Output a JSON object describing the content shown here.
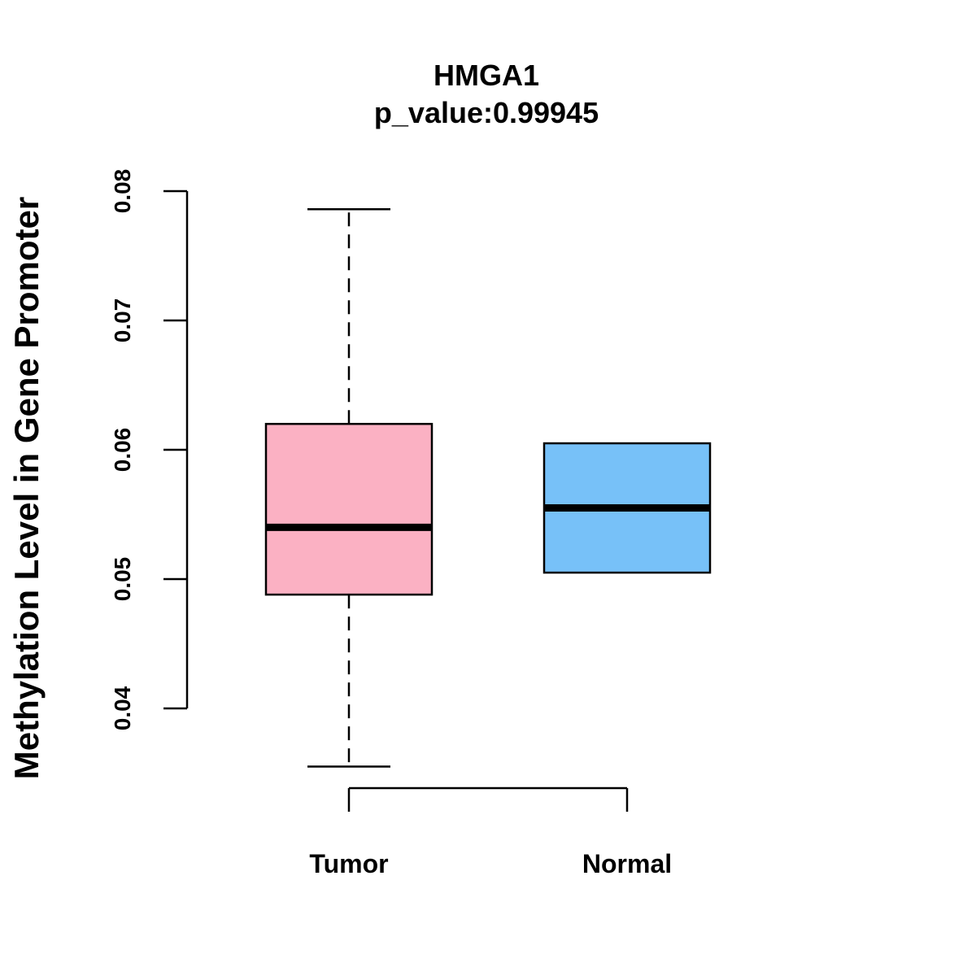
{
  "chart_data": {
    "type": "boxplot",
    "title": "HMGA1",
    "subtitle": "p_value:0.99945",
    "xlabel": "",
    "ylabel": "Methylation Level in Gene Promoter",
    "ylim": [
      0.04,
      0.08
    ],
    "yticks": [
      "0.04",
      "0.05",
      "0.06",
      "0.07",
      "0.08"
    ],
    "categories": [
      "Tumor",
      "Normal"
    ],
    "boxes": [
      {
        "name": "Tumor",
        "color": "#FBB1C3",
        "whisker_low": 0.0355,
        "q1": 0.0488,
        "median": 0.054,
        "q3": 0.062,
        "whisker_high": 0.0786
      },
      {
        "name": "Normal",
        "color": "#77C1F8",
        "whisker_low": 0.0505,
        "q1": 0.0505,
        "median": 0.0555,
        "q3": 0.0605,
        "whisker_high": 0.0605
      }
    ]
  }
}
